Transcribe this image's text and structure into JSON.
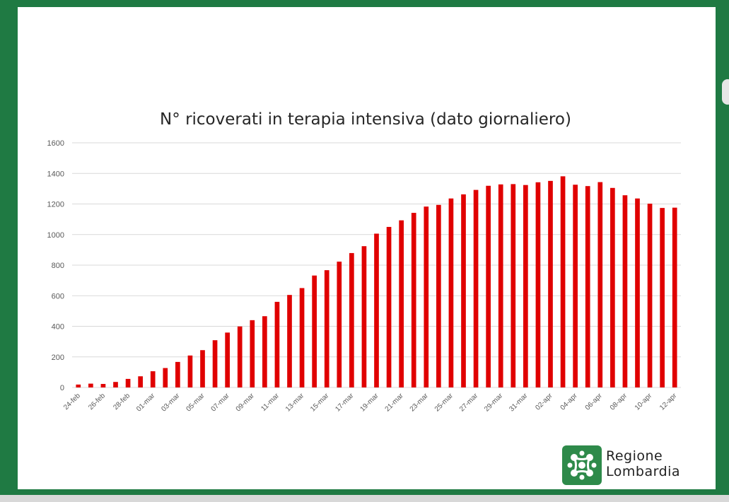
{
  "chart_data": {
    "type": "bar",
    "title": "N° ricoverati in terapia intensiva (dato giornaliero)",
    "xlabel": "",
    "ylabel": "",
    "ylim": [
      0,
      1600
    ],
    "yticks": [
      0,
      200,
      400,
      600,
      800,
      1000,
      1200,
      1400,
      1600
    ],
    "grid": true,
    "bar_color": "#e00000",
    "categories": [
      "24-feb",
      "25-feb",
      "26-feb",
      "27-feb",
      "28-feb",
      "29-feb",
      "01-mar",
      "02-mar",
      "03-mar",
      "04-mar",
      "05-mar",
      "06-mar",
      "07-mar",
      "08-mar",
      "09-mar",
      "10-mar",
      "11-mar",
      "12-mar",
      "13-mar",
      "14-mar",
      "15-mar",
      "16-mar",
      "17-mar",
      "18-mar",
      "19-mar",
      "20-mar",
      "21-mar",
      "22-mar",
      "23-mar",
      "24-mar",
      "25-mar",
      "26-mar",
      "27-mar",
      "28-mar",
      "29-mar",
      "30-mar",
      "31-mar",
      "01-apr",
      "02-apr",
      "03-apr",
      "04-apr",
      "05-apr",
      "06-apr",
      "07-apr",
      "08-apr",
      "09-apr",
      "10-apr",
      "11-apr",
      "12-apr"
    ],
    "shown_tick_labels": [
      "24-feb",
      "26-feb",
      "28-feb",
      "01-mar",
      "03-mar",
      "05-mar",
      "07-mar",
      "09-mar",
      "11-mar",
      "13-mar",
      "15-mar",
      "17-mar",
      "19-mar",
      "21-mar",
      "23-mar",
      "25-mar",
      "27-mar",
      "29-mar",
      "31-mar",
      "02-apr",
      "04-apr",
      "06-apr",
      "08-apr",
      "10-apr",
      "12-apr"
    ],
    "values": [
      19,
      25,
      23,
      36,
      56,
      73,
      106,
      127,
      167,
      209,
      244,
      309,
      359,
      399,
      440,
      466,
      560,
      605,
      650,
      732,
      767,
      823,
      879,
      924,
      1006,
      1050,
      1093,
      1142,
      1183,
      1194,
      1236,
      1263,
      1292,
      1319,
      1328,
      1330,
      1324,
      1342,
      1351,
      1381,
      1326,
      1317,
      1343,
      1305,
      1257,
      1236,
      1202,
      1174,
      1176
    ]
  },
  "logo": {
    "line1": "Regione",
    "line2": "Lombardia",
    "mark_color": "#2e8a4a"
  },
  "colors": {
    "frame": "#1f7a43",
    "background": "#ffffff"
  }
}
